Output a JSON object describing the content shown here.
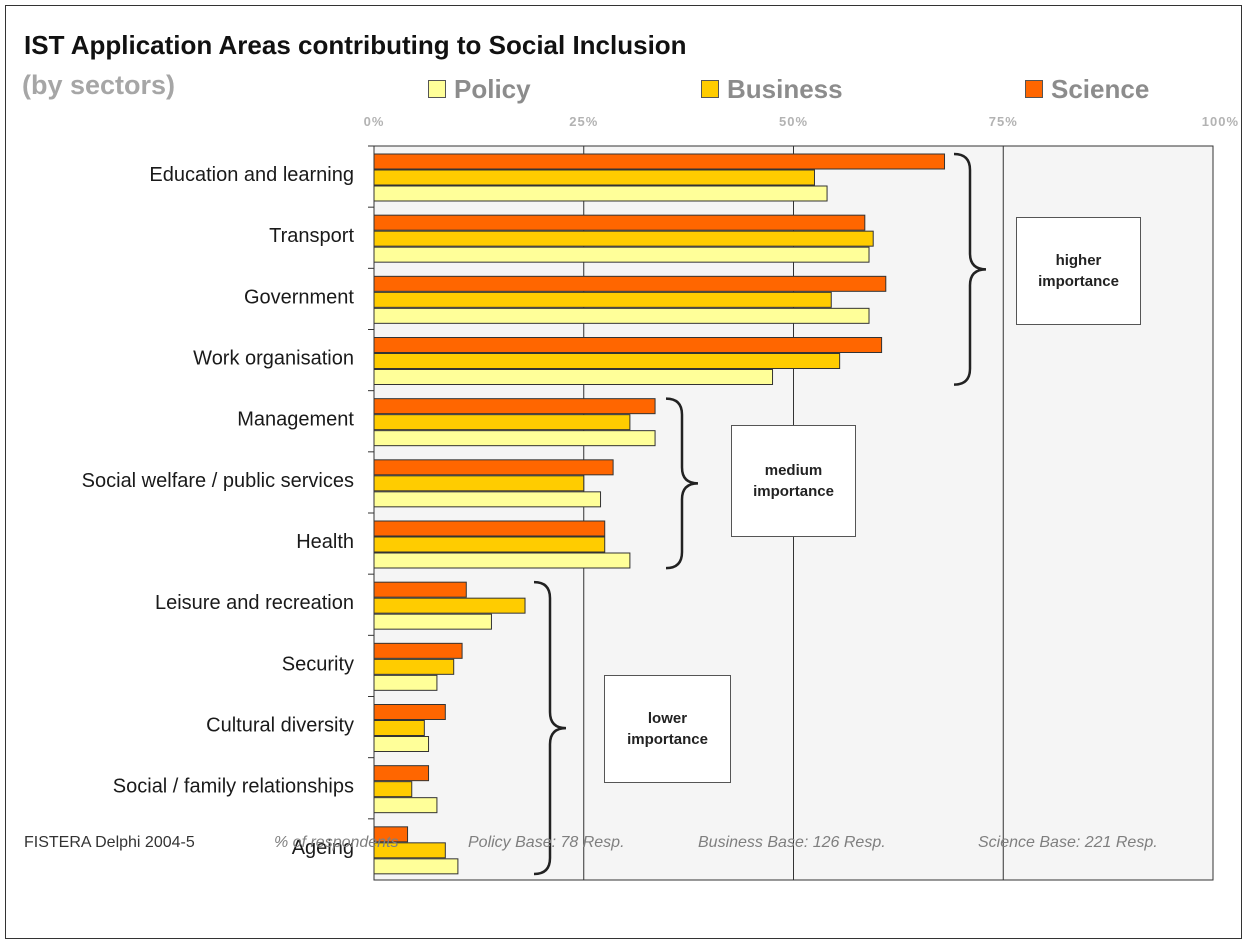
{
  "title": "IST Application Areas contributing to Social Inclusion",
  "subtitle": "(by sectors)",
  "legend": [
    {
      "name": "Policy",
      "color": "#ffff99"
    },
    {
      "name": "Business",
      "color": "#ffcc00"
    },
    {
      "name": "Science",
      "color": "#ff6600"
    }
  ],
  "footer": {
    "source": "FISTERA Delphi 2004-5",
    "measure": "% of respondents",
    "policy_base": "Policy Base: 78 Resp.",
    "business_base": "Business Base: 126 Resp.",
    "science_base": "Science Base: 221 Resp."
  },
  "annotations": {
    "higher_line1": "higher",
    "higher_line2": "importance",
    "medium_line1": "medium",
    "medium_line2": "importance",
    "lower_line1": "lower",
    "lower_line2": "importance"
  },
  "chart_data": {
    "type": "bar",
    "orientation": "horizontal",
    "title": "IST Application Areas contributing to Social Inclusion",
    "subtitle": "(by sectors)",
    "xlabel": "% of respondents",
    "xlim": [
      0,
      100
    ],
    "x_ticks": [
      "0%",
      "25%",
      "50%",
      "75%",
      "100%"
    ],
    "x_tick_values": [
      0,
      25,
      50,
      75,
      100
    ],
    "x_axis_position": "top",
    "grid": true,
    "legend_position": "top",
    "categories": [
      "Education and learning",
      "Transport",
      "Government",
      "Work organisation",
      "Management",
      "Social welfare / public services",
      "Health",
      "Leisure and recreation",
      "Security",
      "Cultural diversity",
      "Social / family relationships",
      "Ageing"
    ],
    "series": [
      {
        "name": "Science",
        "color": "#ff6600",
        "values": [
          68,
          58.5,
          61,
          60.5,
          33.5,
          28.5,
          27.5,
          11,
          10.5,
          8.5,
          6.5,
          4
        ]
      },
      {
        "name": "Business",
        "color": "#ffcc00",
        "values": [
          52.5,
          59.5,
          54.5,
          55.5,
          30.5,
          25,
          27.5,
          18,
          9.5,
          6,
          4.5,
          8.5
        ]
      },
      {
        "name": "Policy",
        "color": "#ffff99",
        "values": [
          54,
          59,
          59,
          47.5,
          33.5,
          27,
          30.5,
          14,
          7.5,
          6.5,
          7.5,
          10
        ]
      }
    ],
    "groups": [
      {
        "label": "higher importance",
        "from": 0,
        "to": 3
      },
      {
        "label": "medium importance",
        "from": 4,
        "to": 6
      },
      {
        "label": "lower importance",
        "from": 7,
        "to": 11
      }
    ]
  }
}
